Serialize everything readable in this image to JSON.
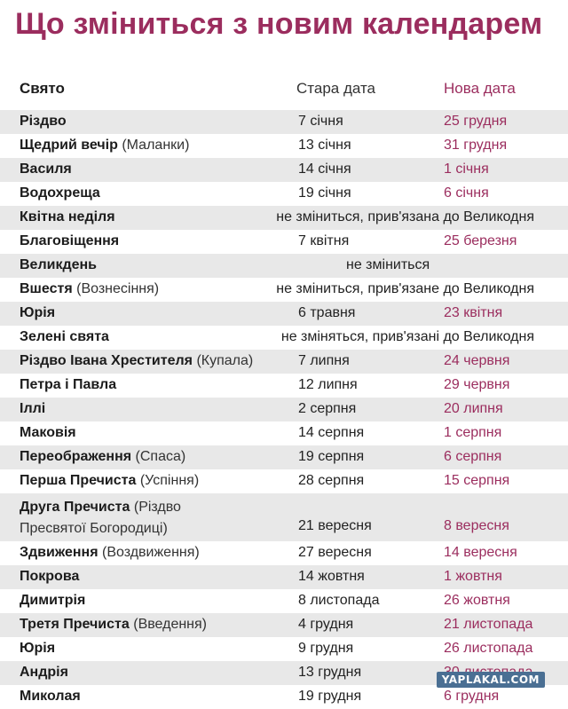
{
  "title": "Що зміниться з новим календарем",
  "headers": {
    "holiday": "Свято",
    "old": "Стара дата",
    "new": "Нова дата"
  },
  "rows": [
    {
      "name": "Різдво",
      "note": "",
      "old": "7 січня",
      "new": "25 грудня"
    },
    {
      "name": "Щедрий вечір",
      "note": "(Маланки)",
      "old": "13 січня",
      "new": "31 грудня"
    },
    {
      "name": "Василя",
      "note": "",
      "old": "14 січня",
      "new": "1 січня"
    },
    {
      "name": "Водохреща",
      "note": "",
      "old": "19 січня",
      "new": "6 січня"
    },
    {
      "name": "Квітна неділя",
      "note": "",
      "span": "не зміниться, прив'язана до Великодня"
    },
    {
      "name": "Благовіщення",
      "note": "",
      "old": "7 квітня",
      "new": "25 березня"
    },
    {
      "name": "Великдень",
      "note": "",
      "center": "не зміниться"
    },
    {
      "name": "Вшестя",
      "note": "(Вознесіння)",
      "span": "не зміниться, прив'язане до Великодня"
    },
    {
      "name": "Юрія",
      "note": "",
      "old": "6 травня",
      "new": "23 квітня"
    },
    {
      "name": "Зелені свята",
      "note": "",
      "span": "не зміняться, прив'язані до Великодня"
    },
    {
      "name": "Різдво Івана Хрестителя",
      "note": "(Купала)",
      "old": "7 липня",
      "new": "24 червня"
    },
    {
      "name": "Петра і Павла",
      "note": "",
      "old": "12 липня",
      "new": "29 червня"
    },
    {
      "name": "Іллі",
      "note": "",
      "old": "2 серпня",
      "new": "20 липня"
    },
    {
      "name": "Маковія",
      "note": "",
      "old": "14 серпня",
      "new": "1 серпня"
    },
    {
      "name": "Переображення",
      "note": "(Спаса)",
      "old": "19 серпня",
      "new": "6 серпня"
    },
    {
      "name": "Перша Пречиста",
      "note": "(Успіння)",
      "old": "28 серпня",
      "new": "15 серпня"
    },
    {
      "name": "Друга Пречиста",
      "note": "(Різдво",
      "note2": "Пресвятої Богородиці)",
      "old": "21 вересня",
      "new": "8 вересня"
    },
    {
      "name": "Здвиження",
      "note": "(Воздвиження)",
      "old": "27 вересня",
      "new": "14 вересня"
    },
    {
      "name": "Покрова",
      "note": "",
      "old": "14 жовтня",
      "new": "1 жовтня"
    },
    {
      "name": "Димитрія",
      "note": "",
      "old": "8 листопада",
      "new": "26 жовтня"
    },
    {
      "name": "Третя Пречиста",
      "note": "(Введення)",
      "old": "4 грудня",
      "new": "21 листопада"
    },
    {
      "name": "Юрія",
      "note": "",
      "old": "9 грудня",
      "new": "26 листопада"
    },
    {
      "name": "Андрія",
      "note": "",
      "old": "13 грудня",
      "new": "30 листопада"
    },
    {
      "name": "Миколая",
      "note": "",
      "old": "19 грудня",
      "new": "6 грудня"
    }
  ],
  "watermark": "YAPLAKAL.COM",
  "colors": {
    "accent": "#9b2d5e",
    "stripe": "#e8e8e8"
  }
}
